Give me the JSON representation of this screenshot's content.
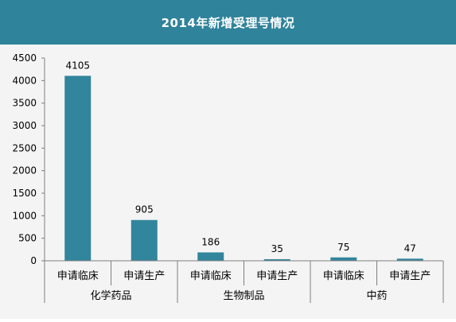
{
  "chart_data": {
    "type": "bar",
    "title": "2014年新增受理号情况",
    "groups": [
      {
        "name": "化学药品",
        "categories": [
          "申请临床",
          "申请生产"
        ],
        "values": [
          4105,
          905
        ]
      },
      {
        "name": "生物制品",
        "categories": [
          "申请临床",
          "申请生产"
        ],
        "values": [
          186,
          35
        ]
      },
      {
        "name": "中药",
        "categories": [
          "申请临床",
          "申请生产"
        ],
        "values": [
          75,
          47
        ]
      }
    ],
    "yticks": [
      "0",
      "500",
      "1000",
      "1500",
      "2000",
      "2500",
      "3000",
      "3500",
      "4000",
      "4500"
    ],
    "ylim": [
      0,
      4500
    ],
    "grid": false,
    "data_labels": true
  },
  "colors": {
    "bar": "#31859c",
    "title_bg": "#2f839a",
    "plot_bg": "#f4f4f4",
    "axis": "#7f7f7f"
  }
}
